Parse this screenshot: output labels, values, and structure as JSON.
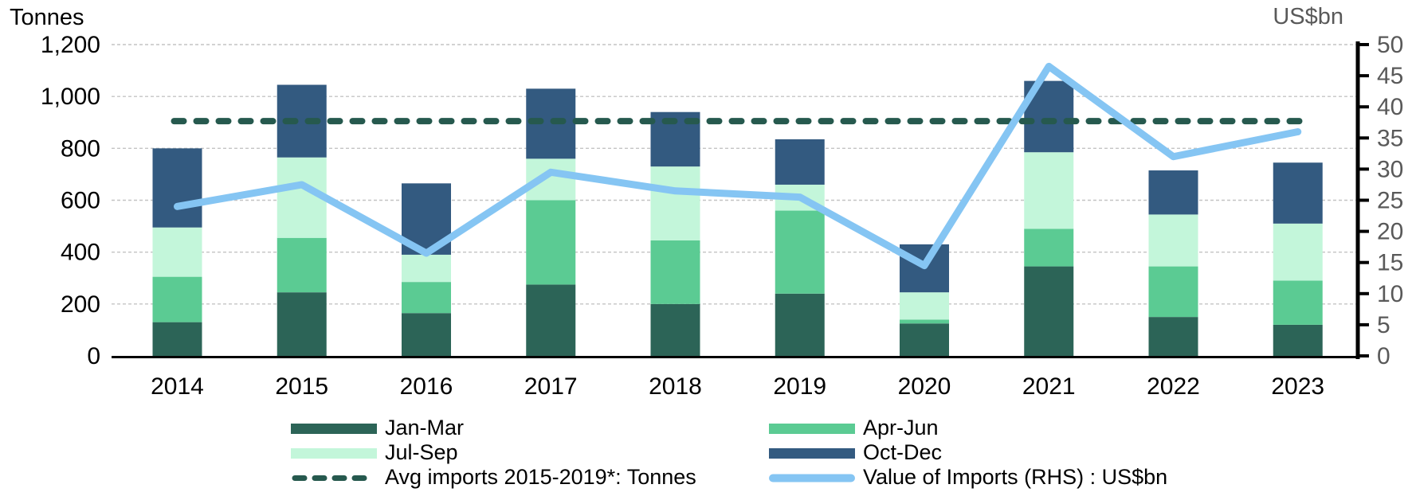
{
  "chart_data": {
    "type": "bar",
    "subtype": "stacked-bar-with-lines",
    "title": "",
    "categories": [
      "2014",
      "2015",
      "2016",
      "2017",
      "2018",
      "2019",
      "2020",
      "2021",
      "2022",
      "2023"
    ],
    "series": [
      {
        "name": "Jan-Mar",
        "type": "bar",
        "axis": "left",
        "color": "#2C6457",
        "values": [
          130,
          245,
          165,
          275,
          200,
          240,
          125,
          345,
          150,
          120
        ]
      },
      {
        "name": "Apr-Jun",
        "type": "bar",
        "axis": "left",
        "color": "#5BCB93",
        "values": [
          175,
          210,
          120,
          325,
          245,
          320,
          15,
          145,
          195,
          170
        ]
      },
      {
        "name": "Jul-Sep",
        "type": "bar",
        "axis": "left",
        "color": "#C3F6DA",
        "values": [
          190,
          310,
          105,
          160,
          285,
          100,
          105,
          295,
          200,
          220
        ]
      },
      {
        "name": "Oct-Dec",
        "type": "bar",
        "axis": "left",
        "color": "#335A80",
        "values": [
          305,
          280,
          275,
          270,
          210,
          175,
          185,
          275,
          170,
          235
        ]
      },
      {
        "name": "Avg imports 2015-2019*: Tonnes",
        "type": "dashed-line",
        "axis": "left",
        "color": "#26594E",
        "value": 905
      },
      {
        "name": "Value of Imports (RHS) : US$bn",
        "type": "line",
        "axis": "right",
        "color": "#85C5F3",
        "values": [
          24,
          27.5,
          16.5,
          29.5,
          26.5,
          25.5,
          14.5,
          46.5,
          32,
          36
        ]
      }
    ],
    "left_axis": {
      "title": "Tonnes",
      "min": 0,
      "max": 1200,
      "step": 200,
      "tick_labels": [
        "0",
        "200",
        "400",
        "600",
        "800",
        "1,000",
        "1,200"
      ]
    },
    "right_axis": {
      "title": "US$bn",
      "min": 0,
      "max": 50,
      "step": 5,
      "tick_labels": [
        "0",
        "5",
        "10",
        "15",
        "20",
        "25",
        "30",
        "35",
        "40",
        "45",
        "50"
      ]
    },
    "grid": true,
    "legend_position": "bottom",
    "bar_totals": [
      800,
      1045,
      665,
      1030,
      940,
      835,
      430,
      1060,
      715,
      745
    ],
    "colors": {
      "gridline": "#c4c4c4",
      "axis_line": "#000000",
      "left_tick_text": "#000000",
      "right_tick_text": "#595959",
      "category_text": "#000000"
    }
  }
}
